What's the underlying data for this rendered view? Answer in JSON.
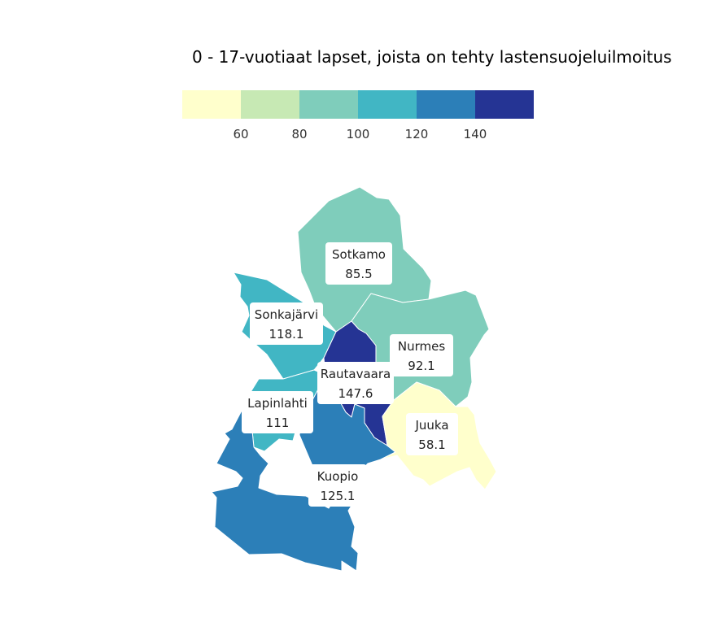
{
  "title": "0 - 17-vuotiaat lapset, joista on tehty lastensuojeluilmoitus",
  "legend": {
    "colors": [
      "#ffffcc",
      "#c7e9b4",
      "#7fcdbb",
      "#41b6c4",
      "#2c7fb8",
      "#253494"
    ],
    "ticks": [
      "60",
      "80",
      "100",
      "120",
      "140"
    ]
  },
  "regions": [
    {
      "name": "Sotkamo",
      "value": "85.5",
      "color": "#7fcdbb"
    },
    {
      "name": "Sonkajärvi",
      "value": "118.1",
      "color": "#41b6c4"
    },
    {
      "name": "Nurmes",
      "value": "92.1",
      "color": "#7fcdbb"
    },
    {
      "name": "Rautavaara",
      "value": "147.6",
      "color": "#253494"
    },
    {
      "name": "Lapinlahti",
      "value": "111",
      "color": "#41b6c4"
    },
    {
      "name": "Juuka",
      "value": "58.1",
      "color": "#ffffcc"
    },
    {
      "name": "Kuopio",
      "value": "125.1",
      "color": "#2c7fb8"
    }
  ]
}
